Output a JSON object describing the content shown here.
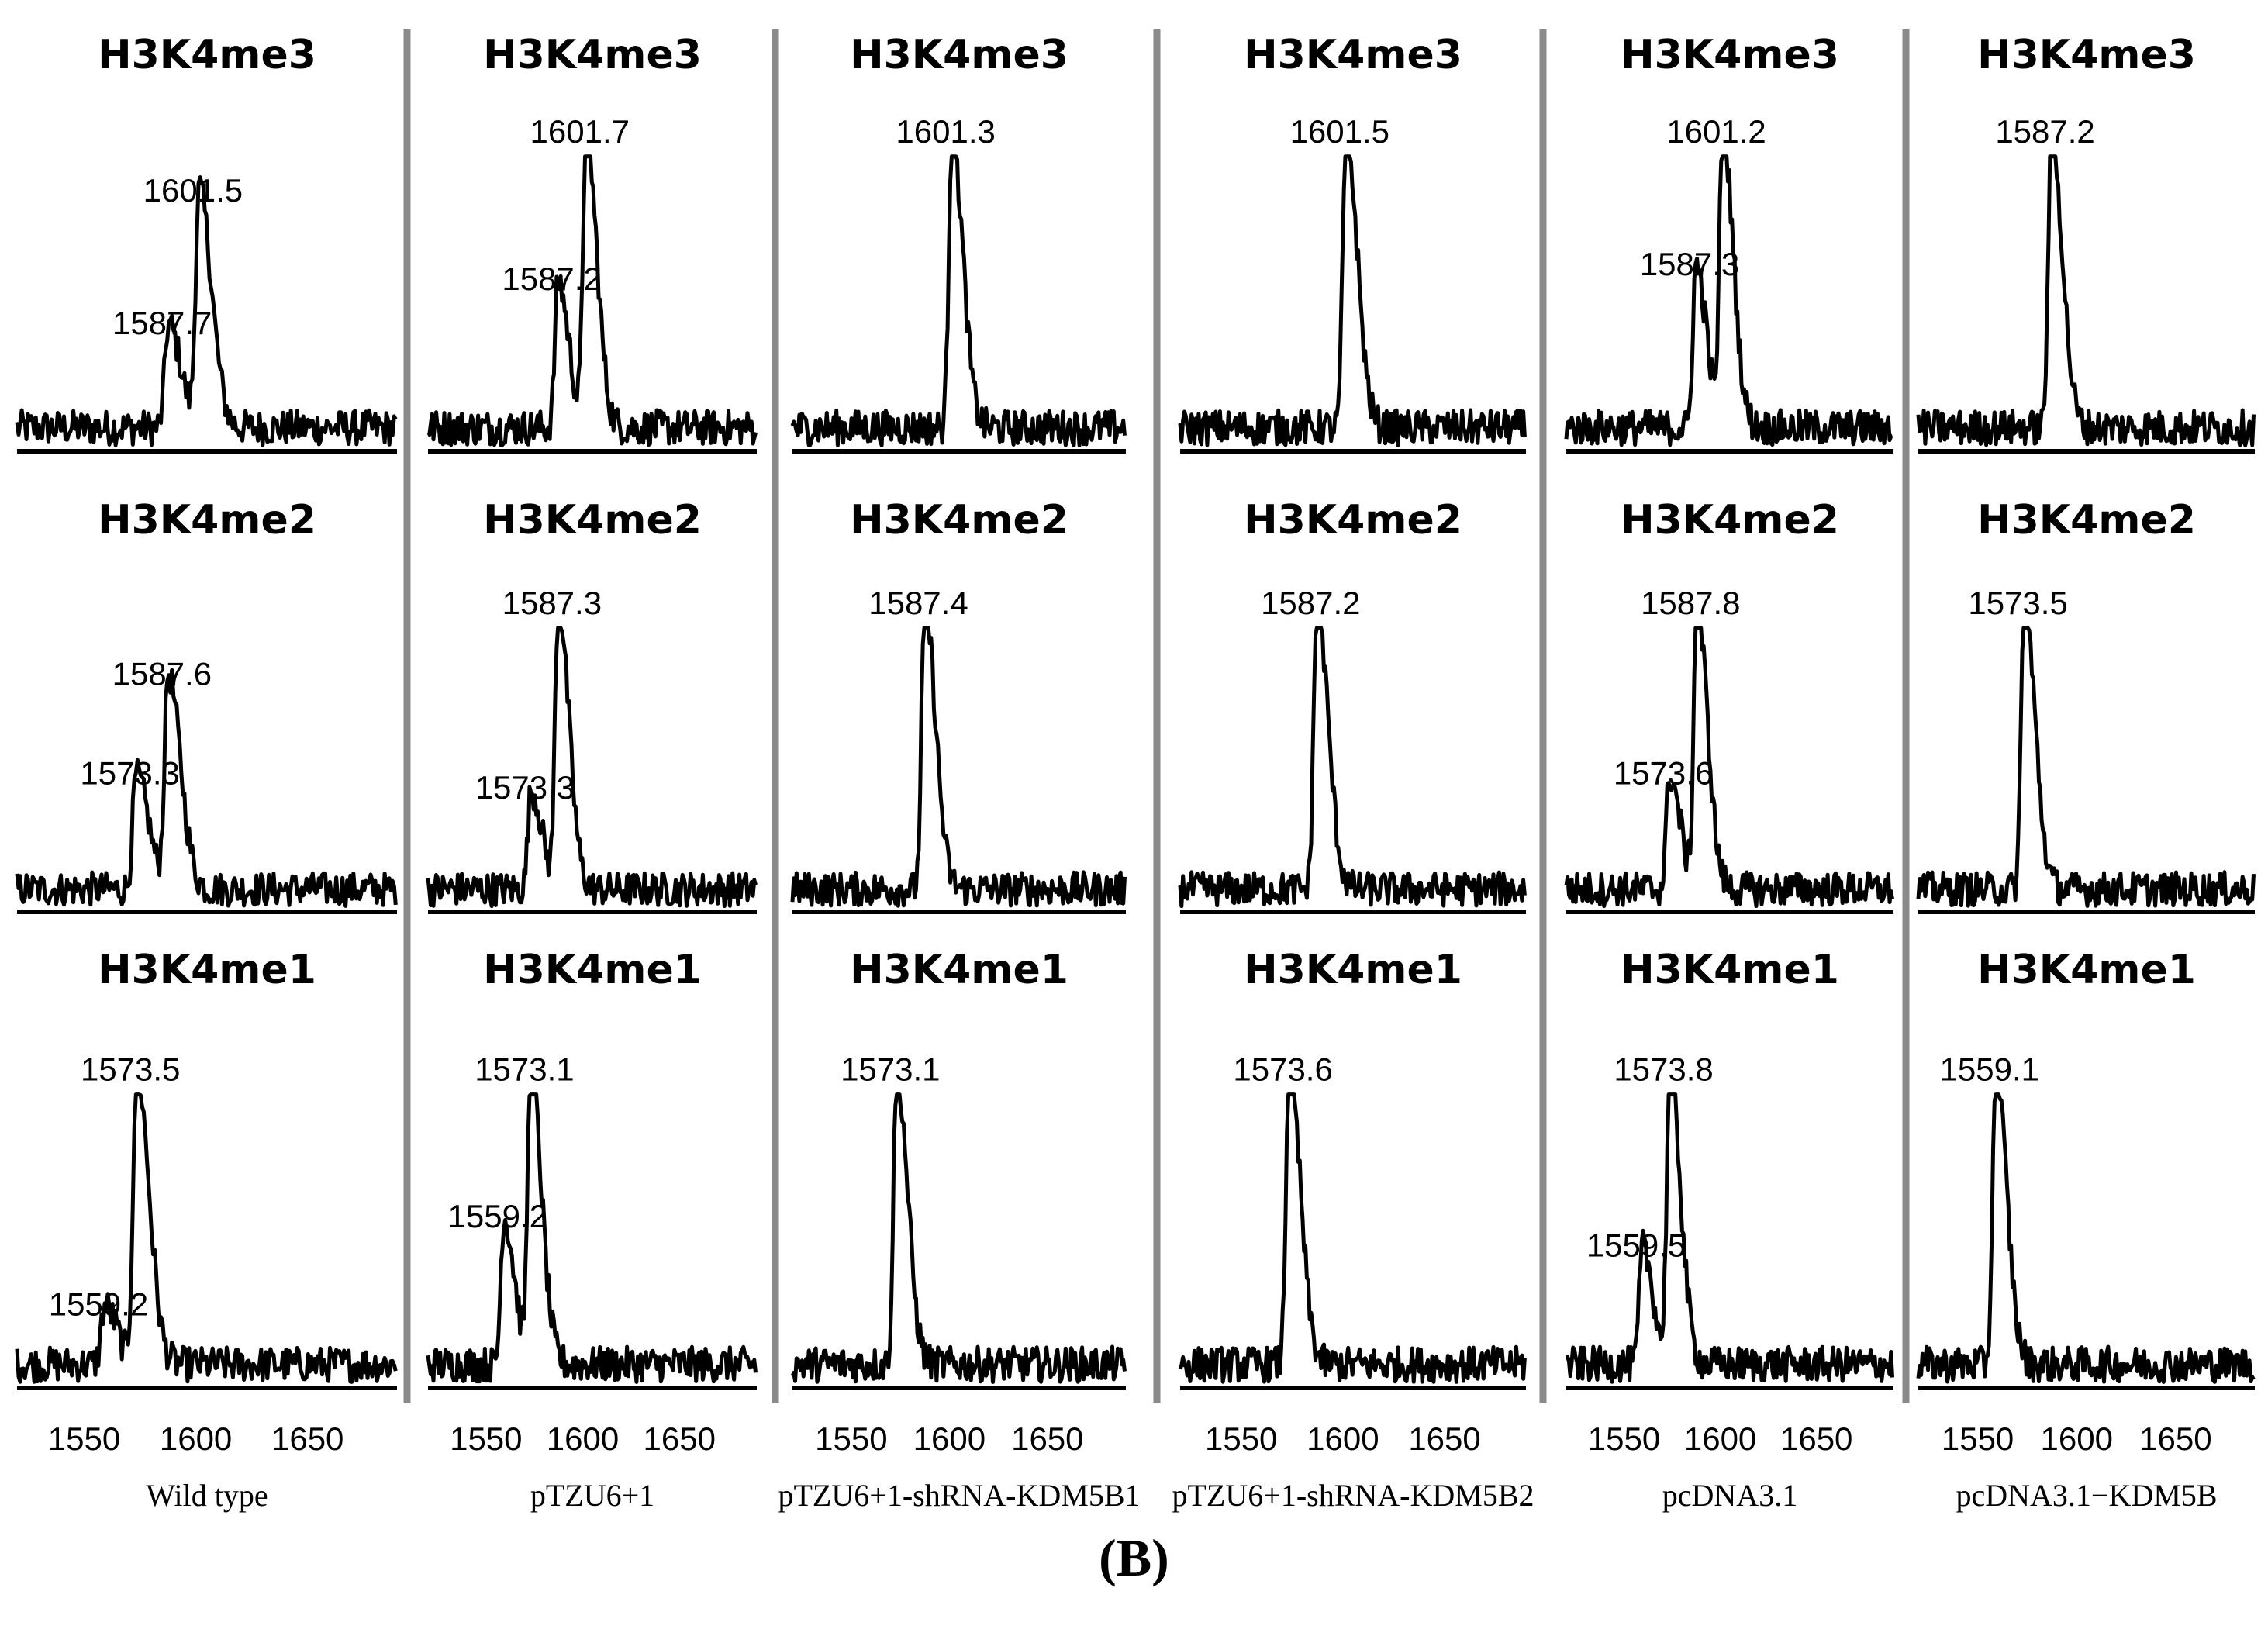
{
  "panel_tag": "(B)",
  "x_ticks": [
    "1550",
    "1600",
    "1650"
  ],
  "chart_data": [
    {
      "column": "Wild type",
      "type": "line",
      "xlabel": "Wild type",
      "rows": [
        {
          "title": "H3K4me3",
          "peaks": [
            {
              "label": "1587.7",
              "m": 1587.7,
              "rel": 0.35
            },
            {
              "label": "1601.5",
              "m": 1601.5,
              "rel": 0.8
            }
          ]
        },
        {
          "title": "H3K4me2",
          "peaks": [
            {
              "label": "1573.3",
              "m": 1573.3,
              "rel": 0.4
            },
            {
              "label": "1587.6",
              "m": 1587.6,
              "rel": 0.75
            }
          ]
        },
        {
          "title": "H3K4me1",
          "peaks": [
            {
              "label": "1559.2",
              "m": 1559.2,
              "rel": 0.2
            },
            {
              "label": "1573.5",
              "m": 1573.5,
              "rel": 1.0
            }
          ]
        }
      ]
    },
    {
      "column": "pTZU6+1",
      "type": "line",
      "xlabel": "pTZU6+1",
      "rows": [
        {
          "title": "H3K4me3",
          "peaks": [
            {
              "label": "1587.2",
              "m": 1587.2,
              "rel": 0.5
            },
            {
              "label": "1601.7",
              "m": 1601.7,
              "rel": 1.0
            }
          ]
        },
        {
          "title": "H3K4me2",
          "peaks": [
            {
              "label": "1573.3",
              "m": 1573.3,
              "rel": 0.35
            },
            {
              "label": "1587.3",
              "m": 1587.3,
              "rel": 1.0
            }
          ]
        },
        {
          "title": "H3K4me1",
          "peaks": [
            {
              "label": "1559.2",
              "m": 1559.2,
              "rel": 0.5
            },
            {
              "label": "1573.1",
              "m": 1573.1,
              "rel": 1.0
            }
          ]
        }
      ]
    },
    {
      "column": "pTZU6+1-shRNA-KDM5B1",
      "type": "line",
      "xlabel": "pTZU6+1-shRNA-KDM5B1",
      "rows": [
        {
          "title": "H3K4me3",
          "peaks": [
            {
              "label": "1601.3",
              "m": 1601.3,
              "rel": 1.0
            }
          ]
        },
        {
          "title": "H3K4me2",
          "peaks": [
            {
              "label": "1587.4",
              "m": 1587.4,
              "rel": 1.0
            }
          ]
        },
        {
          "title": "H3K4me1",
          "peaks": [
            {
              "label": "1573.1",
              "m": 1573.1,
              "rel": 1.0
            }
          ]
        }
      ]
    },
    {
      "column": "pTZU6+1-shRNA-KDM5B2",
      "type": "line",
      "xlabel": "pTZU6+1-shRNA-KDM5B2",
      "rows": [
        {
          "title": "H3K4me3",
          "peaks": [
            {
              "label": "1601.5",
              "m": 1601.5,
              "rel": 1.0
            }
          ]
        },
        {
          "title": "H3K4me2",
          "peaks": [
            {
              "label": "1587.2",
              "m": 1587.2,
              "rel": 1.0
            }
          ]
        },
        {
          "title": "H3K4me1",
          "peaks": [
            {
              "label": "1573.6",
              "m": 1573.6,
              "rel": 1.0
            }
          ]
        }
      ]
    },
    {
      "column": "pcDNA3.1",
      "type": "line",
      "xlabel": "pcDNA3.1",
      "rows": [
        {
          "title": "H3K4me3",
          "peaks": [
            {
              "label": "1587.3",
              "m": 1587.3,
              "rel": 0.55
            },
            {
              "label": "1601.2",
              "m": 1601.2,
              "rel": 1.0
            }
          ]
        },
        {
          "title": "H3K4me2",
          "peaks": [
            {
              "label": "1573.6",
              "m": 1573.6,
              "rel": 0.4
            },
            {
              "label": "1587.8",
              "m": 1587.8,
              "rel": 1.0
            }
          ]
        },
        {
          "title": "H3K4me1",
          "peaks": [
            {
              "label": "1559.5",
              "m": 1559.5,
              "rel": 0.4
            },
            {
              "label": "1573.8",
              "m": 1573.8,
              "rel": 1.0
            }
          ]
        }
      ]
    },
    {
      "column": "pcDNA3.1−KDM5B",
      "type": "line",
      "xlabel": "pcDNA3.1−KDM5B",
      "rows": [
        {
          "title": "H3K4me3",
          "peaks": [
            {
              "label": "1587.2",
              "m": 1587.2,
              "rel": 1.0
            }
          ]
        },
        {
          "title": "H3K4me2",
          "peaks": [
            {
              "label": "1573.5",
              "m": 1573.5,
              "rel": 1.0
            }
          ]
        },
        {
          "title": "H3K4me1",
          "peaks": [
            {
              "label": "1559.1",
              "m": 1559.1,
              "rel": 1.0
            }
          ]
        }
      ]
    }
  ]
}
